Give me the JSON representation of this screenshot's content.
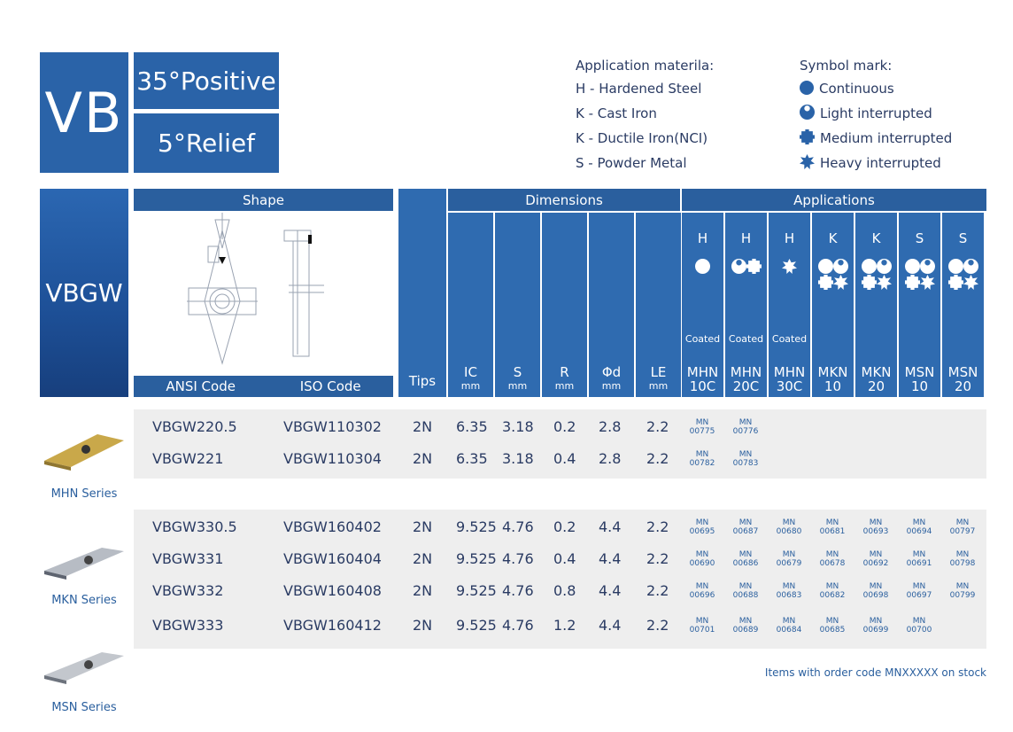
{
  "header": {
    "code": "VB",
    "angle": "35°Positive",
    "relief": "5°Relief"
  },
  "legend": {
    "materials_title": "Application materila:",
    "materials": [
      "H  - Hardened Steel",
      "K  - Cast Iron",
      "K  - Ductile Iron(NCI)",
      "S   - Powder Metal"
    ],
    "symbols_title": "Symbol mark:",
    "symbols": [
      "Continuous",
      "Light interrupted",
      "Medium interrupted",
      "Heavy interrupted"
    ]
  },
  "banner": "VBGW",
  "table_headers": {
    "shape": "Shape",
    "dimensions": "Dimensions",
    "applications": "Applications",
    "ansi": "ANSI Code",
    "iso": "ISO Code",
    "tips": "Tips",
    "dims": [
      {
        "label": "IC",
        "unit": "mm"
      },
      {
        "label": "S",
        "unit": "mm"
      },
      {
        "label": "R",
        "unit": "mm"
      },
      {
        "label": "Φd",
        "unit": "mm"
      },
      {
        "label": "LE",
        "unit": "mm"
      }
    ],
    "apps": [
      {
        "mat": "H",
        "coat": "Coated",
        "grade1": "MHN",
        "grade2": "10C"
      },
      {
        "mat": "H",
        "coat": "Coated",
        "grade1": "MHN",
        "grade2": "20C"
      },
      {
        "mat": "H",
        "coat": "Coated",
        "grade1": "MHN",
        "grade2": "30C"
      },
      {
        "mat": "K",
        "coat": "",
        "grade1": "MKN",
        "grade2": "10"
      },
      {
        "mat": "K",
        "coat": "",
        "grade1": "MKN",
        "grade2": "20"
      },
      {
        "mat": "S",
        "coat": "",
        "grade1": "MSN",
        "grade2": "10"
      },
      {
        "mat": "S",
        "coat": "",
        "grade1": "MSN",
        "grade2": "20"
      }
    ]
  },
  "series": [
    "MHN Series",
    "MKN Series",
    "MSN Series"
  ],
  "rows": [
    {
      "ansi": "VBGW220.5",
      "iso": "VBGW110302",
      "tips": "2N",
      "ic": "6.35",
      "s": "3.18",
      "r": "0.2",
      "d": "2.8",
      "le": "2.2",
      "codes": [
        "MN 00775",
        "MN 00776",
        "",
        "",
        "",
        "",
        ""
      ]
    },
    {
      "ansi": "VBGW221",
      "iso": "VBGW110304",
      "tips": "2N",
      "ic": "6.35",
      "s": "3.18",
      "r": "0.4",
      "d": "2.8",
      "le": "2.2",
      "codes": [
        "MN 00782",
        "MN 00783",
        "",
        "",
        "",
        "",
        ""
      ]
    },
    {
      "ansi": "VBGW330.5",
      "iso": "VBGW160402",
      "tips": "2N",
      "ic": "9.525",
      "s": "4.76",
      "r": "0.2",
      "d": "4.4",
      "le": "2.2",
      "codes": [
        "MN 00695",
        "MN 00687",
        "MN 00680",
        "MN 00681",
        "MN 00693",
        "MN 00694",
        "MN 00797"
      ]
    },
    {
      "ansi": "VBGW331",
      "iso": "VBGW160404",
      "tips": "2N",
      "ic": "9.525",
      "s": "4.76",
      "r": "0.4",
      "d": "4.4",
      "le": "2.2",
      "codes": [
        "MN 00690",
        "MN 00686",
        "MN 00679",
        "MN 00678",
        "MN 00692",
        "MN 00691",
        "MN 00798"
      ]
    },
    {
      "ansi": "VBGW332",
      "iso": "VBGW160408",
      "tips": "2N",
      "ic": "9.525",
      "s": "4.76",
      "r": "0.8",
      "d": "4.4",
      "le": "2.2",
      "codes": [
        "MN 00696",
        "MN 00688",
        "MN 00683",
        "MN 00682",
        "MN 00698",
        "MN 00697",
        "MN 00799"
      ]
    },
    {
      "ansi": "VBGW333",
      "iso": "VBGW160412",
      "tips": "2N",
      "ic": "9.525",
      "s": "4.76",
      "r": "1.2",
      "d": "4.4",
      "le": "2.2",
      "codes": [
        "MN 00701",
        "MN 00689",
        "MN 00684",
        "MN 00685",
        "MN 00699",
        "MN 00700",
        ""
      ]
    }
  ],
  "footnote": "Items with order code MNXXXXX on stock",
  "colors": {
    "primary": "#2a63a8",
    "band": "#eeeeee",
    "text": "#2a3b63"
  }
}
